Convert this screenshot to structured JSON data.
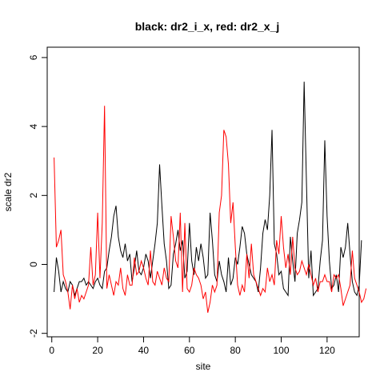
{
  "chart_data": {
    "type": "line",
    "title": "black: dr2_i_x, red: dr2_x_j",
    "xlabel": "site",
    "ylabel": "scale dr2",
    "xlim": [
      -2,
      134
    ],
    "ylim": [
      -2.1,
      6.3
    ],
    "xticks": [
      "0",
      "20",
      "40",
      "60",
      "80",
      "100",
      "120"
    ],
    "xtick_values": [
      0,
      20,
      40,
      60,
      80,
      100,
      120
    ],
    "yticks": [
      "-2",
      "0",
      "2",
      "4",
      "6"
    ],
    "ytick_values": [
      -2,
      0,
      2,
      4,
      6
    ],
    "grid": false,
    "legend": "none",
    "series": [
      {
        "color": "#000000",
        "values": [
          -0.8,
          0.2,
          -0.2,
          -0.8,
          -0.5,
          -0.7,
          -0.8,
          -0.5,
          -0.6,
          -0.9,
          -0.7,
          -0.5,
          -0.5,
          -0.4,
          -0.6,
          -0.5,
          -0.6,
          -0.7,
          -0.5,
          -0.4,
          -0.6,
          -0.7,
          -0.2,
          -0.1,
          0.4,
          0.8,
          1.4,
          1.7,
          0.8,
          0.4,
          0.2,
          0.6,
          0.1,
          0.3,
          -0.5,
          -0.1,
          0.4,
          -0.2,
          -0.3,
          -0.1,
          0.3,
          0.1,
          -0.4,
          0.1,
          0.6,
          1.2,
          2.9,
          1.7,
          0.6,
          0.1,
          -0.7,
          -0.6,
          0.3,
          0.6,
          1.0,
          0.4,
          0.7,
          -0.4,
          -0.2,
          1.2,
          0.1,
          -0.3,
          0.5,
          0.1,
          0.6,
          0.2,
          -0.4,
          -0.3,
          1.5,
          0.7,
          -0.3,
          -0.5,
          0.1,
          -0.3,
          -0.5,
          -0.8,
          0.2,
          -0.6,
          -0.4,
          0.2,
          0.0,
          0.5,
          1.1,
          0.9,
          0.3,
          0.0,
          -0.3,
          -0.4,
          -0.5,
          -0.8,
          -0.1,
          0.9,
          1.3,
          1.0,
          2.0,
          3.9,
          0.6,
          0.3,
          -0.3,
          -0.2,
          -0.7,
          -0.8,
          -0.9,
          0.8,
          0.1,
          -0.5,
          0.9,
          1.3,
          1.8,
          5.3,
          2.4,
          -0.4,
          0.4,
          -0.9,
          -0.8,
          -0.7,
          0.1,
          0.7,
          3.6,
          1.4,
          0.1,
          -0.7,
          -0.6,
          -0.3,
          -0.8,
          0.5,
          0.2,
          0.5,
          1.2,
          0.3,
          -0.5,
          -0.8,
          -0.9,
          -0.6,
          0.7
        ]
      },
      {
        "color": "#ff0000",
        "values": [
          3.1,
          0.5,
          0.7,
          1.0,
          -0.3,
          -0.5,
          -0.8,
          -1.3,
          -0.6,
          -1.0,
          -0.7,
          -1.1,
          -0.9,
          -1.0,
          -0.8,
          -0.6,
          0.5,
          -0.6,
          -0.3,
          1.5,
          -0.4,
          1.2,
          4.6,
          -0.7,
          -0.3,
          -0.6,
          -0.9,
          -0.5,
          -0.6,
          -0.1,
          -0.7,
          -0.9,
          -0.3,
          -0.6,
          -0.6,
          0.2,
          -0.3,
          -0.2,
          0.1,
          -0.1,
          -0.4,
          -0.6,
          0.4,
          -0.5,
          -0.6,
          -0.2,
          -0.4,
          -0.6,
          -0.1,
          -0.4,
          -0.5,
          1.4,
          0.8,
          0.1,
          -0.1,
          1.5,
          -0.8,
          1.2,
          -0.7,
          -0.8,
          -0.6,
          -0.1,
          -0.3,
          -0.4,
          -0.6,
          -1.0,
          -0.8,
          -1.4,
          -1.1,
          -0.6,
          -0.8,
          -0.6,
          1.5,
          2.0,
          3.9,
          3.7,
          2.9,
          1.2,
          1.8,
          0.5,
          -0.6,
          -0.9,
          -0.6,
          -0.8,
          0.3,
          -0.4,
          0.6,
          -0.3,
          -0.5,
          -0.7,
          -0.9,
          -0.7,
          -0.8,
          -0.1,
          -0.5,
          -0.3,
          -0.6,
          0.7,
          0.3,
          1.4,
          0.5,
          -0.1,
          0.3,
          -0.3,
          0.8,
          -0.1,
          -0.3,
          -0.2,
          0.1,
          -0.1,
          -0.3,
          0.0,
          -0.3,
          -0.6,
          -0.4,
          -0.8,
          -0.5,
          -0.5,
          -0.3,
          -0.5,
          -0.5,
          -0.8,
          -0.3,
          -0.4,
          -0.3,
          -0.7,
          -1.2,
          -1.0,
          -0.8,
          -0.6,
          0.4,
          -0.4,
          -0.6,
          -0.8,
          -1.1,
          -1.0,
          -0.7
        ]
      }
    ]
  }
}
